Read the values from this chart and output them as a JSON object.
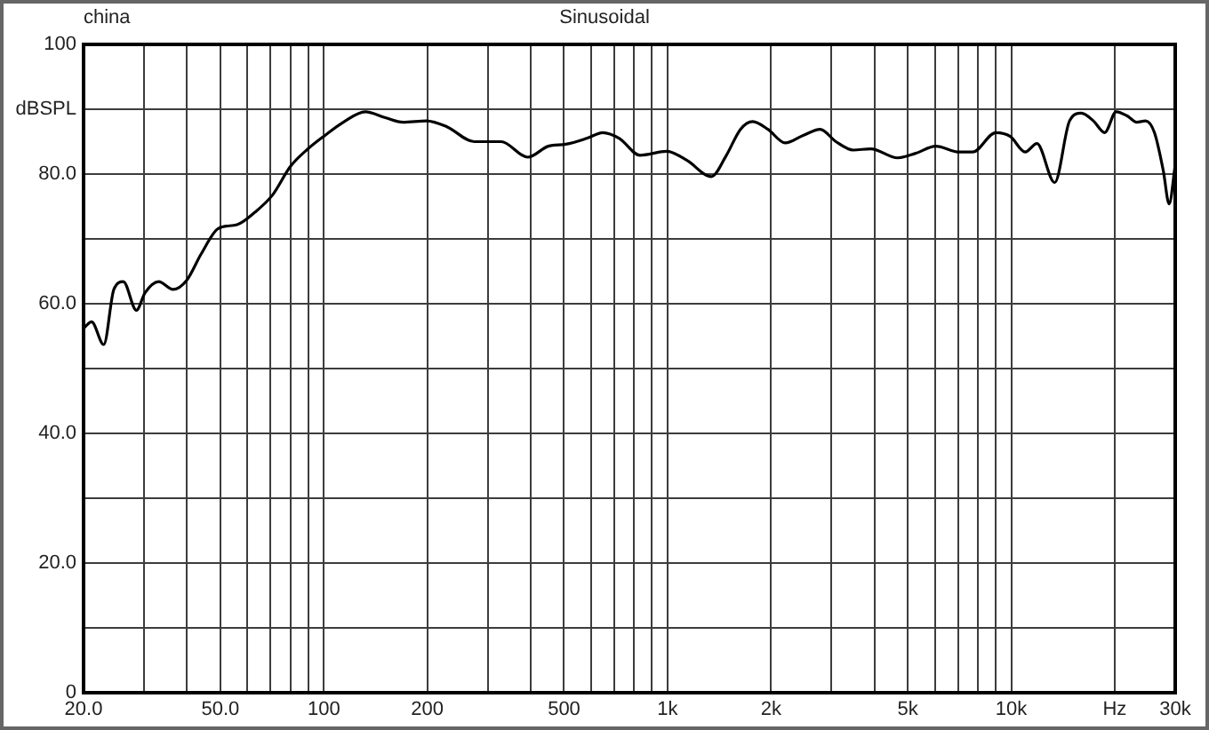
{
  "chart_data": {
    "type": "line",
    "title": "Sinusoidal",
    "annotations": [
      "china"
    ],
    "x": [
      20,
      21.1,
      22.9,
      24.5,
      26.1,
      28.5,
      30.2,
      33.1,
      36.4,
      39.9,
      44,
      49.3,
      55.9,
      63,
      71,
      80,
      90,
      101,
      114,
      132,
      151,
      170,
      199,
      228,
      274,
      328,
      392,
      450,
      506,
      582,
      648,
      724,
      832,
      994,
      1140,
      1340,
      1480,
      1630,
      1770,
      1960,
      2200,
      2490,
      2780,
      3090,
      3470,
      3900,
      4670,
      5270,
      6030,
      7070,
      7720,
      9020,
      9940,
      10980,
      11880,
      13380,
      14780,
      16000,
      17340,
      18700,
      20200,
      21850,
      23180,
      24600,
      26100,
      27700,
      28800,
      30000
    ],
    "series": [
      {
        "color": "#000000",
        "values": [
          56.2,
          57.2,
          53.7,
          62.2,
          63.4,
          59.0,
          61.7,
          63.4,
          62.2,
          63.6,
          67.7,
          71.6,
          72.2,
          74.1,
          76.8,
          81.2,
          83.9,
          86.0,
          88.0,
          89.6,
          88.7,
          88.0,
          88.2,
          87.3,
          85.0,
          85.0,
          82.6,
          84.3,
          84.6,
          85.5,
          86.4,
          85.5,
          82.9,
          83.5,
          82.1,
          79.6,
          82.8,
          86.9,
          88.1,
          86.9,
          84.8,
          86.0,
          86.9,
          85.0,
          83.7,
          83.9,
          82.5,
          83.2,
          84.3,
          83.4,
          83.4,
          86.4,
          85.8,
          83.4,
          84.7,
          78.7,
          88.2,
          89.4,
          88.2,
          86.4,
          89.6,
          88.9,
          88.0,
          88.2,
          86.4,
          80.5,
          75.4,
          81.4
        ]
      }
    ],
    "log": "x",
    "xlim": [
      20,
      30000
    ],
    "xticks": [
      {
        "value": 20,
        "label": "20.0"
      },
      {
        "value": 30,
        "label": null
      },
      {
        "value": 40,
        "label": null
      },
      {
        "value": 50,
        "label": "50.0"
      },
      {
        "value": 60,
        "label": null
      },
      {
        "value": 70,
        "label": null
      },
      {
        "value": 80,
        "label": null
      },
      {
        "value": 90,
        "label": null
      },
      100,
      200,
      {
        "value": 300,
        "label": null
      },
      {
        "value": 400,
        "label": null
      },
      500,
      {
        "value": 600,
        "label": null
      },
      {
        "value": 700,
        "label": null
      },
      {
        "value": 800,
        "label": null
      },
      {
        "value": 900,
        "label": null
      },
      {
        "value": 1000,
        "label": "1k"
      },
      {
        "value": 2000,
        "label": "2k"
      },
      {
        "value": 3000,
        "label": null
      },
      {
        "value": 4000,
        "label": null
      },
      {
        "value": 5000,
        "label": "5k"
      },
      {
        "value": 6000,
        "label": null
      },
      {
        "value": 7000,
        "label": null
      },
      {
        "value": 8000,
        "label": null
      },
      {
        "value": 9000,
        "label": null
      },
      {
        "value": 10000,
        "label": "10k"
      },
      {
        "value": 20000,
        "label": "Hz"
      },
      {
        "value": 30000,
        "label": "30k"
      }
    ],
    "ylim": [
      0,
      100
    ],
    "yticks": [
      0,
      {
        "value": 10,
        "label": null
      },
      {
        "value": 20,
        "label": "20.0"
      },
      {
        "value": 30,
        "label": null
      },
      {
        "value": 40,
        "label": "40.0"
      },
      {
        "value": 50,
        "label": null
      },
      {
        "value": 60,
        "label": "60.0"
      },
      {
        "value": 70,
        "label": null
      },
      {
        "value": 80,
        "label": "80.0"
      },
      {
        "value": 90,
        "label": "dBSPL"
      },
      100
    ],
    "grid": true,
    "legend": false
  }
}
